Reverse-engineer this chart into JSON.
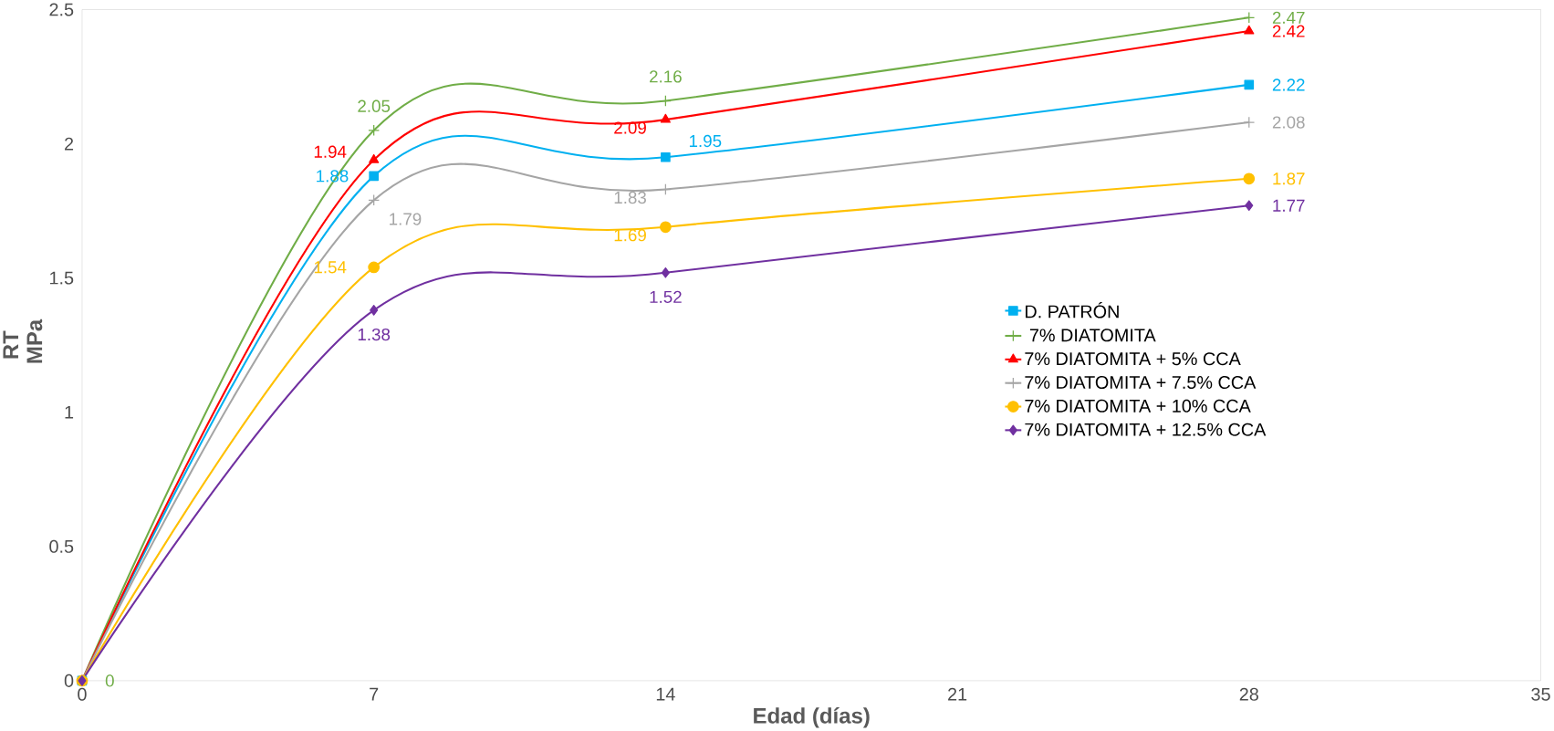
{
  "chart_data": {
    "type": "line",
    "xlabel": "Edad (días)",
    "ylabel": "RT MPa",
    "xlim": [
      0,
      35
    ],
    "ylim": [
      0,
      2.5
    ],
    "xticks": [
      0,
      7,
      14,
      21,
      28,
      35
    ],
    "yticks": [
      0,
      0.5,
      1,
      1.5,
      2,
      2.5
    ],
    "grid": false,
    "legend": "right",
    "x": [
      0,
      7,
      14,
      28
    ],
    "series": [
      {
        "name": "D. PATRÓN",
        "color": "#00b0f0",
        "marker": "square",
        "values": [
          0,
          1.88,
          1.95,
          2.22
        ],
        "value_labels": [
          null,
          "1.88",
          "1.95",
          "2.22"
        ]
      },
      {
        "name": " 7% DIATOMITA",
        "color": "#70ad47",
        "marker": "cross",
        "values": [
          0,
          2.05,
          2.16,
          2.47
        ],
        "value_labels": [
          "0",
          "2.05",
          "2.16",
          "2.47"
        ]
      },
      {
        "name": "7% DIATOMITA + 5% CCA",
        "color": "#ff0000",
        "marker": "triangle",
        "values": [
          0,
          1.94,
          2.09,
          2.42
        ],
        "value_labels": [
          null,
          "1.94",
          "2.09",
          "2.42"
        ]
      },
      {
        "name": "7% DIATOMITA + 7.5% CCA",
        "color": "#a5a5a5",
        "marker": "cross",
        "values": [
          0,
          1.79,
          1.83,
          2.08
        ],
        "value_labels": [
          null,
          "1.79",
          "1.83",
          "2.08"
        ]
      },
      {
        "name": "7% DIATOMITA + 10% CCA",
        "color": "#ffc000",
        "marker": "circle",
        "values": [
          0,
          1.54,
          1.69,
          1.87
        ],
        "value_labels": [
          null,
          "1.54",
          "1.69",
          "1.87"
        ]
      },
      {
        "name": "7% DIATOMITA + 12.5% CCA",
        "color": "#7030a0",
        "marker": "diamond",
        "values": [
          0,
          1.38,
          1.52,
          1.77
        ],
        "value_labels": [
          null,
          "1.38",
          "1.52",
          "1.77"
        ]
      }
    ]
  }
}
